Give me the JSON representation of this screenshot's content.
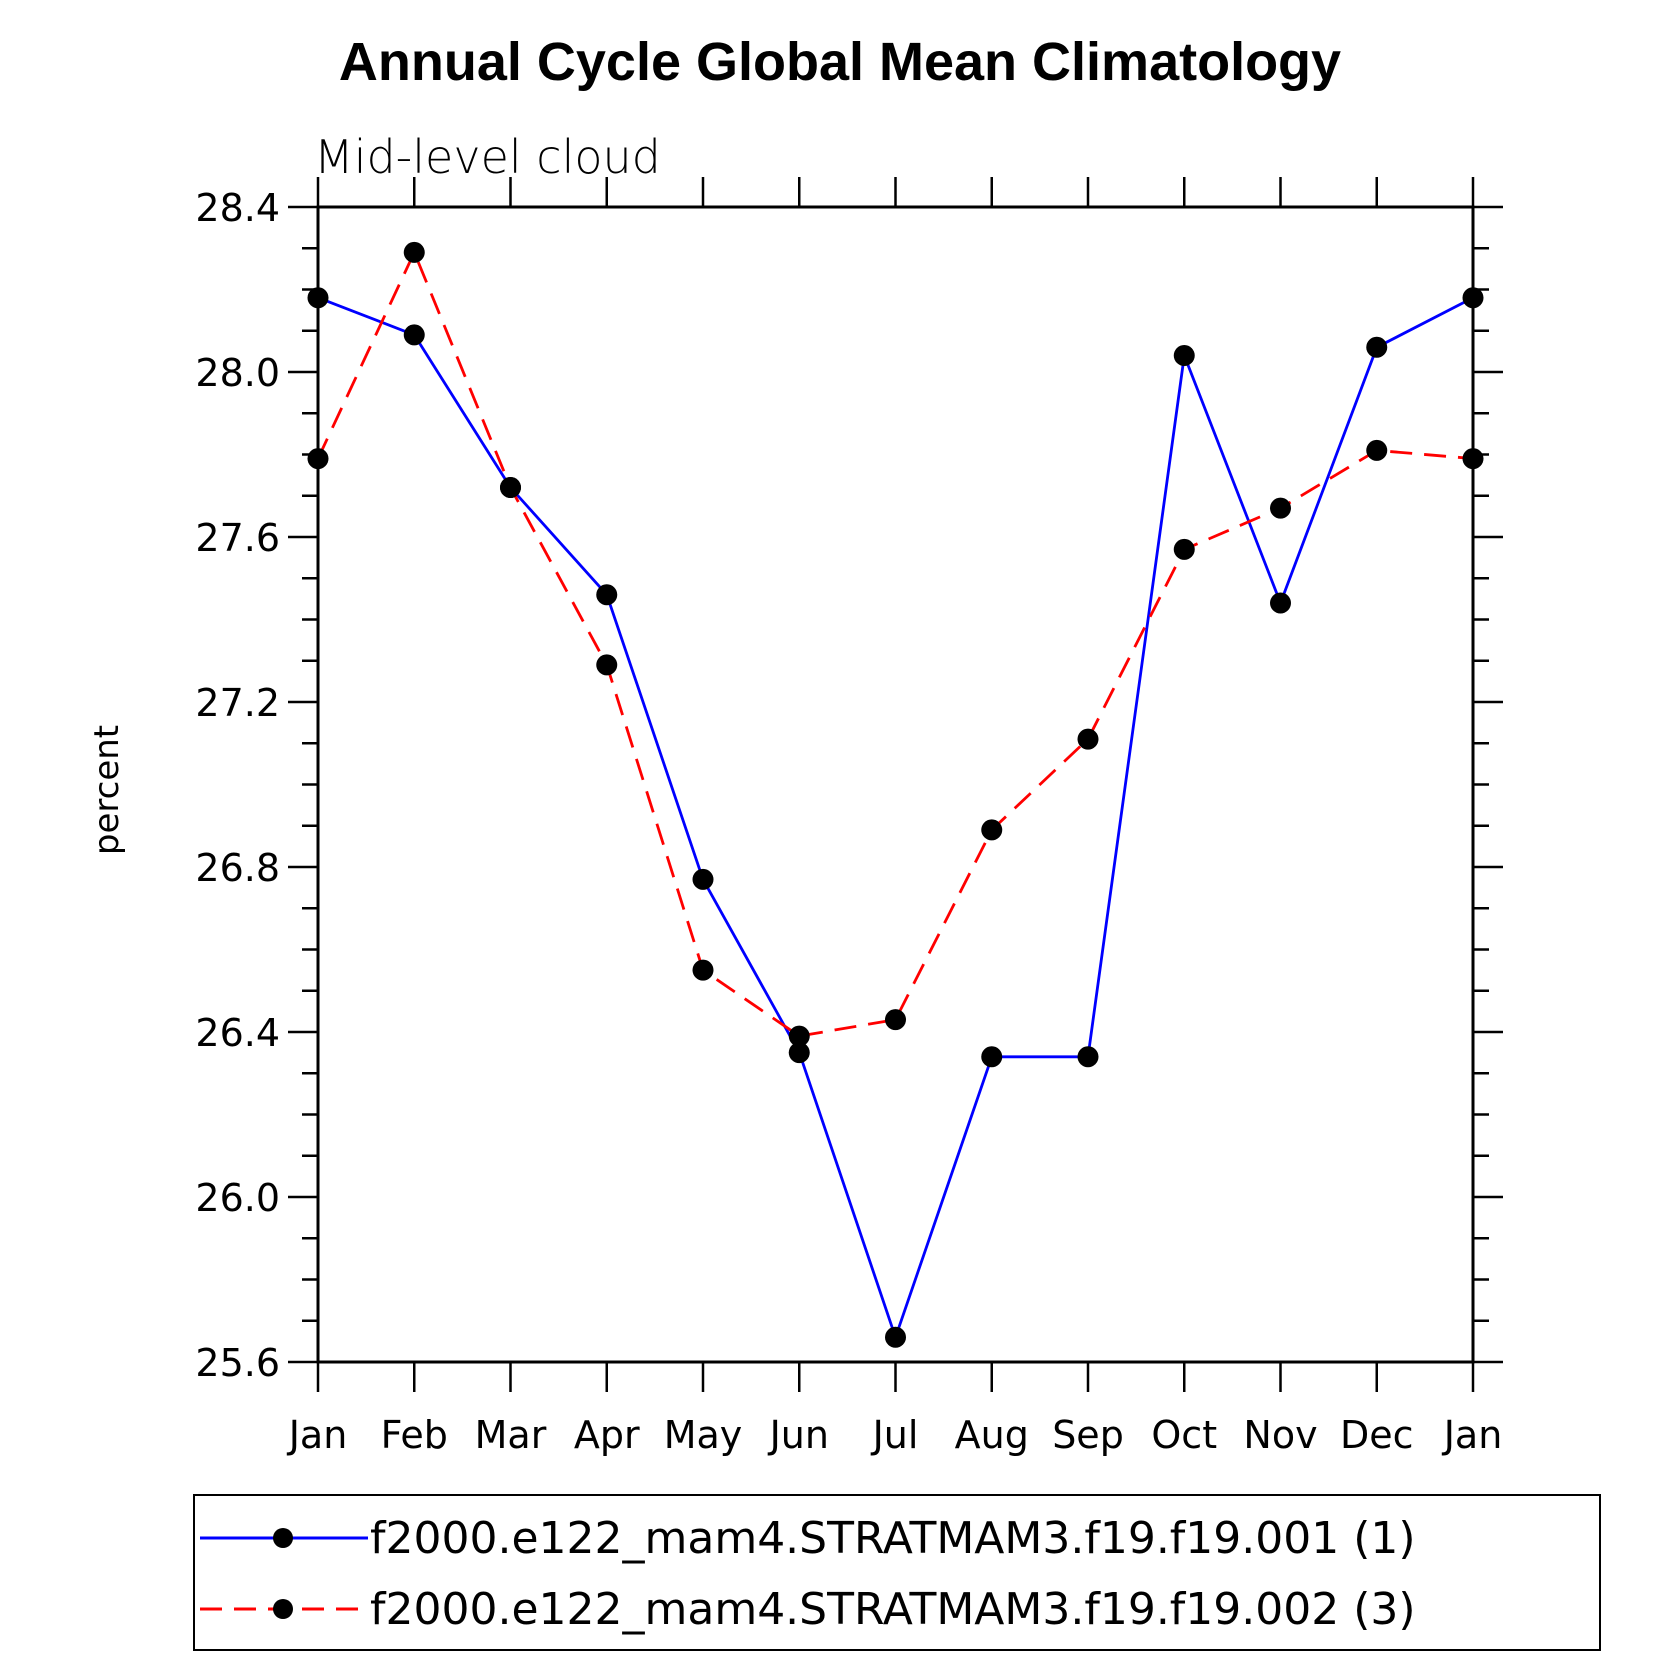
{
  "chart_data": {
    "type": "line",
    "title": "Annual Cycle Global Mean Climatology",
    "subtitle": "Mid-level cloud",
    "xlabel": "",
    "ylabel": "percent",
    "categories": [
      "Jan",
      "Feb",
      "Mar",
      "Apr",
      "May",
      "Jun",
      "Jul",
      "Aug",
      "Sep",
      "Oct",
      "Nov",
      "Dec",
      "Jan"
    ],
    "ylim": [
      25.6,
      28.4
    ],
    "yticks": [
      "28.4",
      "28.0",
      "27.6",
      "27.2",
      "26.8",
      "26.4",
      "26.0",
      "25.6"
    ],
    "ytick_values": [
      28.4,
      28.0,
      27.6,
      27.2,
      26.8,
      26.4,
      26.0,
      25.6
    ],
    "grid": false,
    "legend_position": "bottom",
    "series": [
      {
        "name": "f2000.e122_mam4.STRATMAM3.f19.f19.001 (1)",
        "color": "#0000ff",
        "dash": "solid",
        "marker": "circle",
        "values": [
          28.18,
          28.09,
          27.72,
          27.46,
          26.77,
          26.35,
          25.66,
          26.34,
          26.34,
          28.04,
          27.44,
          28.06,
          28.18
        ]
      },
      {
        "name": "f2000.e122_mam4.STRATMAM3.f19.f19.002 (3)",
        "color": "#ff0000",
        "dash": "dashed",
        "marker": "circle",
        "values": [
          27.79,
          28.29,
          27.72,
          27.29,
          26.55,
          26.39,
          26.43,
          26.89,
          27.11,
          27.57,
          27.67,
          27.81,
          27.79
        ]
      }
    ]
  }
}
